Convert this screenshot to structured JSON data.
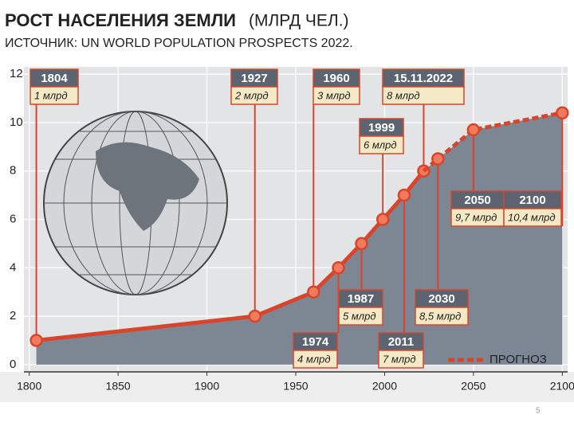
{
  "page_number": "5",
  "chart_data": {
    "type": "line",
    "title": "РОСТ НАСЕЛЕНИЯ ЗЕМЛИ",
    "title_note": "(МЛРД ЧЕЛ.)",
    "subtitle": "ИСТОЧНИК: UN WORLD POPULATION PROSPECTS 2022.",
    "xlim": [
      1797,
      2103
    ],
    "xticks": [
      1800,
      1850,
      1900,
      1950,
      2000,
      2050,
      2100
    ],
    "ylim": [
      -0.3,
      12.3
    ],
    "yticks": [
      0,
      2,
      4,
      6,
      8,
      10,
      12
    ],
    "grid": true,
    "series": [
      {
        "color": "#d9452b",
        "dashed": false,
        "x": [
          1804,
          1927,
          1960,
          1974,
          1987,
          1999,
          2011,
          2022
        ],
        "x_labels": [
          "1804",
          "1927",
          "1960",
          "1974",
          "1987",
          "1999",
          "2011",
          "15.11.2022"
        ],
        "values": [
          1,
          2,
          3,
          4,
          5,
          6,
          7,
          8
        ],
        "value_labels": [
          "1 млрд",
          "2 млрд",
          "3 млрд",
          "4 млрд",
          "5 млрд",
          "6 млрд",
          "7 млрд",
          "8 млрд"
        ]
      },
      {
        "name": "ПРОГНОЗ",
        "color": "#d9452b",
        "dashed": true,
        "x": [
          2022,
          2030,
          2050,
          2100
        ],
        "x_labels": [
          null,
          "2030",
          "2050",
          "2100"
        ],
        "values": [
          8,
          8.5,
          9.7,
          10.4
        ],
        "value_labels": [
          null,
          "8,5 млрд",
          "9,7 млрд",
          "10,4 млрд"
        ]
      }
    ]
  }
}
